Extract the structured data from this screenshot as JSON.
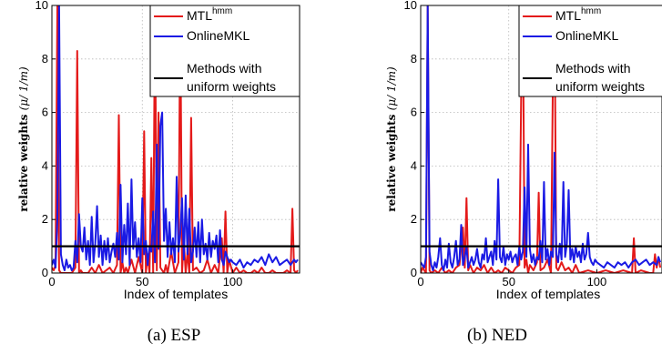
{
  "chart_data": [
    {
      "type": "line",
      "caption": "(a) ESP",
      "xlabel": "Index of templates",
      "ylabel": "relative weights",
      "ylabel_math": "(μ/ 1/m)",
      "xlim": [
        0,
        137
      ],
      "ylim": [
        0,
        10
      ],
      "xticks": [
        0,
        50,
        100
      ],
      "yticks": [
        0,
        2,
        4,
        6,
        8,
        10
      ],
      "grid": true,
      "legend_position": "top-right",
      "series": [
        {
          "name": "MTL",
          "name_sup": "hmm",
          "color": "#e41a1a",
          "x": [
            0,
            1,
            2,
            3,
            4,
            5,
            6,
            7,
            8,
            9,
            10,
            11,
            12,
            13,
            14,
            15,
            16,
            17,
            18,
            19,
            20,
            22,
            24,
            26,
            28,
            30,
            32,
            34,
            36,
            37,
            38,
            39,
            40,
            41,
            42,
            44,
            46,
            48,
            50,
            51,
            52,
            53,
            54,
            55,
            56,
            57,
            58,
            59,
            60,
            61,
            62,
            63,
            64,
            66,
            68,
            70,
            71,
            72,
            73,
            74,
            75,
            76,
            77,
            78,
            80,
            82,
            84,
            86,
            88,
            90,
            92,
            94,
            95,
            96,
            97,
            98,
            100,
            102,
            104,
            106,
            108,
            110,
            112,
            114,
            116,
            118,
            120,
            122,
            124,
            126,
            128,
            130,
            132,
            133,
            134,
            135,
            136
          ],
          "y": [
            0.2,
            0.1,
            0.3,
            10,
            0.1,
            0,
            0,
            0,
            0,
            0,
            0,
            0,
            0.1,
            0.2,
            8.3,
            0,
            0.1,
            0,
            0,
            0,
            0,
            0.2,
            0,
            0.3,
            0,
            0.1,
            0.2,
            0,
            0.3,
            5.9,
            0,
            0.4,
            0,
            0.2,
            0,
            0.5,
            0,
            0.6,
            0,
            5.3,
            0,
            0.7,
            0,
            4.3,
            0,
            10,
            0.1,
            6,
            0.2,
            0.1,
            0,
            0.3,
            0,
            0.8,
            0,
            0.4,
            10,
            0,
            1.2,
            0,
            0.8,
            0,
            5.8,
            0.1,
            0.2,
            0,
            0.1,
            0.5,
            0,
            0.3,
            0,
            1.3,
            0,
            2.3,
            0,
            0.5,
            0,
            0.2,
            0,
            0.1,
            0,
            0,
            0.1,
            0,
            0.2,
            0,
            0,
            0.1,
            0,
            0,
            0,
            0.1,
            0,
            2.4,
            0.1,
            0,
            0.1
          ]
        },
        {
          "name": "OnlineMKL",
          "color": "#1a1ae4",
          "x": [
            0,
            1,
            2,
            3,
            4,
            5,
            6,
            7,
            8,
            9,
            10,
            11,
            12,
            13,
            14,
            15,
            16,
            17,
            18,
            19,
            20,
            21,
            22,
            23,
            24,
            25,
            26,
            27,
            28,
            29,
            30,
            31,
            32,
            33,
            34,
            35,
            36,
            37,
            38,
            39,
            40,
            41,
            42,
            43,
            44,
            45,
            46,
            47,
            48,
            49,
            50,
            51,
            52,
            53,
            54,
            55,
            56,
            57,
            58,
            59,
            60,
            61,
            62,
            63,
            64,
            65,
            66,
            67,
            68,
            69,
            70,
            71,
            72,
            73,
            74,
            75,
            76,
            77,
            78,
            79,
            80,
            81,
            82,
            83,
            84,
            85,
            86,
            87,
            88,
            89,
            90,
            91,
            92,
            93,
            94,
            95,
            96,
            97,
            98,
            99,
            100,
            102,
            104,
            106,
            108,
            110,
            112,
            114,
            116,
            118,
            120,
            122,
            124,
            126,
            128,
            130,
            132,
            134,
            135,
            136
          ],
          "y": [
            0.3,
            0.5,
            0.2,
            2.0,
            10,
            0.7,
            0.3,
            0.1,
            0.5,
            0.2,
            0.3,
            0.1,
            0.2,
            1.2,
            0.4,
            2.2,
            1.0,
            0.8,
            1.7,
            0.5,
            1.2,
            0.3,
            2.1,
            0.4,
            1.1,
            2.5,
            0.6,
            1.4,
            0.3,
            1.2,
            0.5,
            1.3,
            0.4,
            0.8,
            1.1,
            0.6,
            1.5,
            0.5,
            3.3,
            0.4,
            1.8,
            0.7,
            2.6,
            0.3,
            3.5,
            0.9,
            1.9,
            0.6,
            1.3,
            0.4,
            2.8,
            0.7,
            1.2,
            0.3,
            1.0,
            0.8,
            2.3,
            0.4,
            4.8,
            0.9,
            5.5,
            6.0,
            1.2,
            2.4,
            0.6,
            1.9,
            0.7,
            1.3,
            0.4,
            3.6,
            0.8,
            1.5,
            2.8,
            0.5,
            2.9,
            0.7,
            2.4,
            0.4,
            0.8,
            1.7,
            0.6,
            1.9,
            0.4,
            2.0,
            0.7,
            1.1,
            0.5,
            1.5,
            0.6,
            1.2,
            0.9,
            1.4,
            0.4,
            1.6,
            0.5,
            0.3,
            0.8,
            0.6,
            0.4,
            0.5,
            0.4,
            0.3,
            0.5,
            0.2,
            0.4,
            0.3,
            0.5,
            0.4,
            0.6,
            0.3,
            0.7,
            0.4,
            0.6,
            0.3,
            0.4,
            0.5,
            0.3,
            0.5,
            0.4,
            0.5
          ]
        },
        {
          "name": "Methods with uniform weights",
          "color": "#000000",
          "x": [
            0,
            137
          ],
          "y": [
            1,
            1
          ]
        }
      ]
    },
    {
      "type": "line",
      "caption": "(b) NED",
      "xlabel": "Index of templates",
      "ylabel": "relative weights",
      "ylabel_math": "(μ/ 1/m)",
      "xlim": [
        0,
        137
      ],
      "ylim": [
        0,
        10
      ],
      "xticks": [
        0,
        50,
        100
      ],
      "yticks": [
        0,
        2,
        4,
        6,
        8,
        10
      ],
      "grid": true,
      "legend_position": "top-right",
      "series": [
        {
          "name": "MTL",
          "name_sup": "hmm",
          "color": "#e41a1a",
          "x": [
            0,
            1,
            2,
            3,
            4,
            5,
            6,
            8,
            10,
            12,
            14,
            16,
            18,
            20,
            22,
            24,
            25,
            26,
            27,
            28,
            30,
            32,
            34,
            36,
            38,
            40,
            42,
            44,
            46,
            48,
            50,
            52,
            54,
            56,
            57,
            58,
            59,
            60,
            61,
            62,
            64,
            66,
            67,
            68,
            70,
            72,
            74,
            75,
            76,
            77,
            78,
            80,
            82,
            84,
            86,
            88,
            90,
            95,
            100,
            105,
            110,
            115,
            120,
            121,
            122,
            125,
            130,
            132,
            133,
            134,
            135,
            136
          ],
          "y": [
            0,
            0.2,
            0.1,
            0,
            10,
            0.1,
            0,
            0.1,
            0,
            0.2,
            0,
            0.1,
            0,
            0.2,
            0.3,
            1.7,
            0.2,
            2.8,
            0.1,
            0.3,
            0,
            0.2,
            0.1,
            0.3,
            0,
            0.2,
            0,
            0.1,
            0,
            0.2,
            0.1,
            0,
            0.2,
            0.3,
            6.5,
            10,
            0.2,
            0.5,
            0,
            0.3,
            0.1,
            0.4,
            3.0,
            0.1,
            0.2,
            0.5,
            0,
            7.0,
            10,
            0.2,
            0.1,
            0.4,
            0.1,
            0.2,
            0,
            0.3,
            0,
            0.1,
            0,
            0.1,
            0,
            0.1,
            0,
            1.3,
            0,
            0.1,
            0,
            0,
            0.7,
            0.2,
            0.6,
            0.2
          ]
        },
        {
          "name": "OnlineMKL",
          "color": "#1a1ae4",
          "x": [
            0,
            1,
            2,
            3,
            4,
            5,
            6,
            7,
            8,
            9,
            10,
            11,
            12,
            13,
            14,
            15,
            16,
            17,
            18,
            19,
            20,
            21,
            22,
            23,
            24,
            25,
            26,
            27,
            28,
            29,
            30,
            31,
            32,
            33,
            34,
            35,
            36,
            37,
            38,
            39,
            40,
            41,
            42,
            43,
            44,
            45,
            46,
            47,
            48,
            49,
            50,
            51,
            52,
            53,
            54,
            55,
            56,
            57,
            58,
            59,
            60,
            61,
            62,
            63,
            64,
            65,
            66,
            67,
            68,
            69,
            70,
            71,
            72,
            73,
            74,
            75,
            76,
            77,
            78,
            79,
            80,
            81,
            82,
            83,
            84,
            85,
            86,
            87,
            88,
            89,
            90,
            91,
            92,
            93,
            94,
            95,
            96,
            97,
            98,
            99,
            100,
            102,
            104,
            106,
            108,
            110,
            112,
            114,
            116,
            118,
            120,
            122,
            124,
            126,
            128,
            130,
            132,
            134,
            135,
            136
          ],
          "y": [
            0.4,
            0.3,
            0.2,
            0.6,
            10,
            0.8,
            0.3,
            0.1,
            0.4,
            0.2,
            0.6,
            1.3,
            0.3,
            0.1,
            0.5,
            0.2,
            1.1,
            0.4,
            0.2,
            0.6,
            1.2,
            0.3,
            0.5,
            1.8,
            0.3,
            0.6,
            1.0,
            0.2,
            0.4,
            0.6,
            0.3,
            0.5,
            0.9,
            0.4,
            0.2,
            0.7,
            0.5,
            1.3,
            0.4,
            0.6,
            0.8,
            0.3,
            1.2,
            0.5,
            3.5,
            0.6,
            0.4,
            1.0,
            0.3,
            0.7,
            0.5,
            0.8,
            0.4,
            0.6,
            0.7,
            0.3,
            1.0,
            0.5,
            0.8,
            3.2,
            0.6,
            4.8,
            0.9,
            0.4,
            0.7,
            0.3,
            0.6,
            0.5,
            1.2,
            0.4,
            3.4,
            0.5,
            0.9,
            0.3,
            0.8,
            0.6,
            4.5,
            0.7,
            0.4,
            1.1,
            0.5,
            3.4,
            0.6,
            1.1,
            3.1,
            0.5,
            0.9,
            0.4,
            1.0,
            0.6,
            0.8,
            0.4,
            1.1,
            0.5,
            0.7,
            1.5,
            0.6,
            0.4,
            0.3,
            0.5,
            0.4,
            0.3,
            0.2,
            0.4,
            0.3,
            0.2,
            0.4,
            0.3,
            0.4,
            0.2,
            0.4,
            0.5,
            0.3,
            0.4,
            0.5,
            0.3,
            0.4,
            0.3,
            0.6,
            0.4
          ]
        },
        {
          "name": "Methods with uniform weights",
          "color": "#000000",
          "x": [
            0,
            137
          ],
          "y": [
            1,
            1
          ]
        }
      ]
    }
  ]
}
